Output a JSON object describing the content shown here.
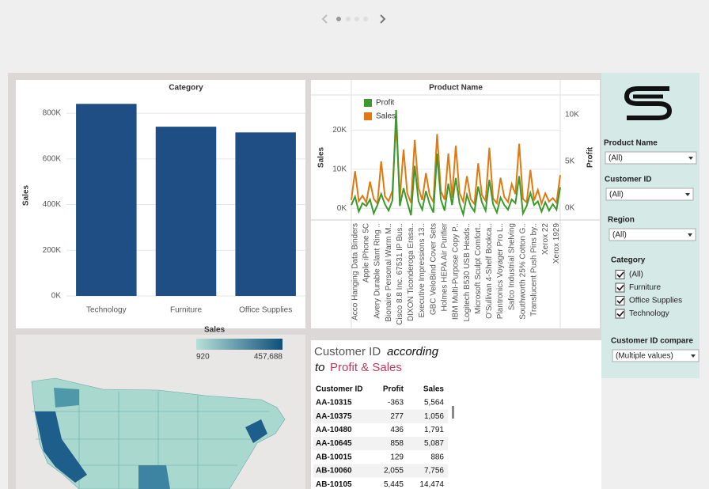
{
  "chart_data": [
    {
      "type": "bar",
      "title": "Category",
      "y_label": "Sales",
      "categories": [
        "Technology",
        "Furniture",
        "Office Supplies"
      ],
      "values": [
        841000,
        741000,
        716000
      ],
      "color": "#1f4e84",
      "ylim": [
        0,
        880000
      ],
      "yticks": [
        {
          "value": 0,
          "label": "0K"
        },
        {
          "value": 200000,
          "label": "200K"
        },
        {
          "value": 400000,
          "label": "400K"
        },
        {
          "value": 600000,
          "label": "600K"
        },
        {
          "value": 800000,
          "label": "800K"
        }
      ],
      "grid": true
    },
    {
      "type": "line",
      "title": "Product Name",
      "y_label": "Sales",
      "y2_label": "Profit",
      "categories": [
        null,
        "Acco Hanging Data Binders",
        null,
        null,
        "Apple iPhone 5C",
        null,
        null,
        "Avery Durable Slant Ring ..",
        null,
        null,
        "Bionaire Personal Warm M..",
        null,
        null,
        "Cisco 8.8 Inc. 67531 IP Bus..",
        null,
        null,
        "DIXON Ticonderoga Erasa..",
        null,
        null,
        "Executive Impressions 13..",
        null,
        null,
        "GBC VeloBind Cover Sets",
        null,
        null,
        "Holmes HEPA Air Purifier",
        null,
        null,
        "IBM Multi-Purpose Copy P..",
        null,
        null,
        "Logitech B530 USB Heads..",
        null,
        null,
        "Microsoft Sculpt Comfort..",
        null,
        null,
        "O'Sullivan 4-Shelf Bookca..",
        null,
        null,
        "Plantronics Voyager Pro L..",
        null,
        null,
        "Safco Industrial Shelving",
        null,
        null,
        "Southworth 25% Cotton G..",
        null,
        null,
        "Translucent Push Pins by..",
        null,
        null,
        "Xerox 22",
        null,
        null,
        "Xerox 1929",
        null
      ],
      "series": [
        {
          "name": "Profit",
          "color": "#3a9a2b",
          "axis": "y2",
          "values": [
            300,
            1200,
            -400,
            500,
            200,
            900,
            -600,
            300,
            1500,
            400,
            -300,
            800,
            10500,
            200,
            2100,
            600,
            -800,
            4500,
            700,
            -200,
            1800,
            400,
            -500,
            5800,
            900,
            -300,
            2600,
            300,
            3200,
            500,
            -700,
            1400,
            200,
            -400,
            2300,
            600,
            -300,
            3000,
            400,
            -500,
            1100,
            300,
            -200,
            900,
            500,
            3400,
            -600,
            200,
            1600,
            300,
            700,
            -400,
            600,
            -300,
            400,
            -200,
            2200
          ]
        },
        {
          "name": "Sales",
          "color": "#e07a10",
          "values": [
            2100,
            9500,
            1800,
            3200,
            1500,
            6800,
            2400,
            1200,
            12000,
            3100,
            1800,
            4500,
            22000,
            2600,
            15000,
            3800,
            1400,
            17500,
            5200,
            2100,
            9000,
            3300,
            1600,
            19000,
            4400,
            2200,
            14000,
            2700,
            16000,
            3900,
            1700,
            8200,
            2300,
            1100,
            11500,
            3400,
            1900,
            15500,
            2500,
            1300,
            7800,
            2900,
            1600,
            6200,
            3600,
            16500,
            2400,
            1500,
            9800,
            2000,
            4700,
            1200,
            3800,
            1700,
            2600,
            1400,
            8500
          ]
        }
      ],
      "ylim": [
        -3000,
        29000
      ],
      "yticks": [
        {
          "value": 0,
          "label": "0K"
        },
        {
          "value": 10000,
          "label": "10K"
        },
        {
          "value": 20000,
          "label": "20K"
        }
      ],
      "y2lim": [
        -1300,
        12100
      ],
      "y2ticks": [
        {
          "value": 0,
          "label": "0K"
        },
        {
          "value": 5000,
          "label": "5K"
        },
        {
          "value": 10000,
          "label": "10K"
        }
      ],
      "grid": true,
      "legend": "upper left"
    }
  ],
  "map_legend": {
    "title": "Sales",
    "min": "920",
    "max": "457,688"
  },
  "filters": {
    "product_name": {
      "label": "Product Name",
      "value": "(All)"
    },
    "customer_id": {
      "label": "Customer ID",
      "value": "(All)"
    },
    "region": {
      "label": "Region",
      "value": "(All)"
    },
    "category": {
      "label": "Category",
      "options": [
        "(All)",
        "Furniture",
        "Office Supplies",
        "Technology"
      ]
    },
    "customer_id_compare": {
      "label": "Customer ID compare",
      "value": "(Multiple values)"
    }
  },
  "table": {
    "title": {
      "part1": "Customer ID",
      "part2": "according",
      "part3": "to",
      "part4": "Profit & Sales"
    },
    "headers": [
      "Customer ID",
      "Profit",
      "Sales"
    ],
    "rows": [
      [
        "AA-10315",
        "-363",
        "5,564"
      ],
      [
        "AA-10375",
        "277",
        "1,056"
      ],
      [
        "AA-10480",
        "436",
        "1,791"
      ],
      [
        "AA-10645",
        "858",
        "5,087"
      ],
      [
        "AB-10015",
        "129",
        "886"
      ],
      [
        "AB-10060",
        "2,055",
        "7,756"
      ],
      [
        "AB-10105",
        "5,445",
        "14,474"
      ]
    ]
  }
}
